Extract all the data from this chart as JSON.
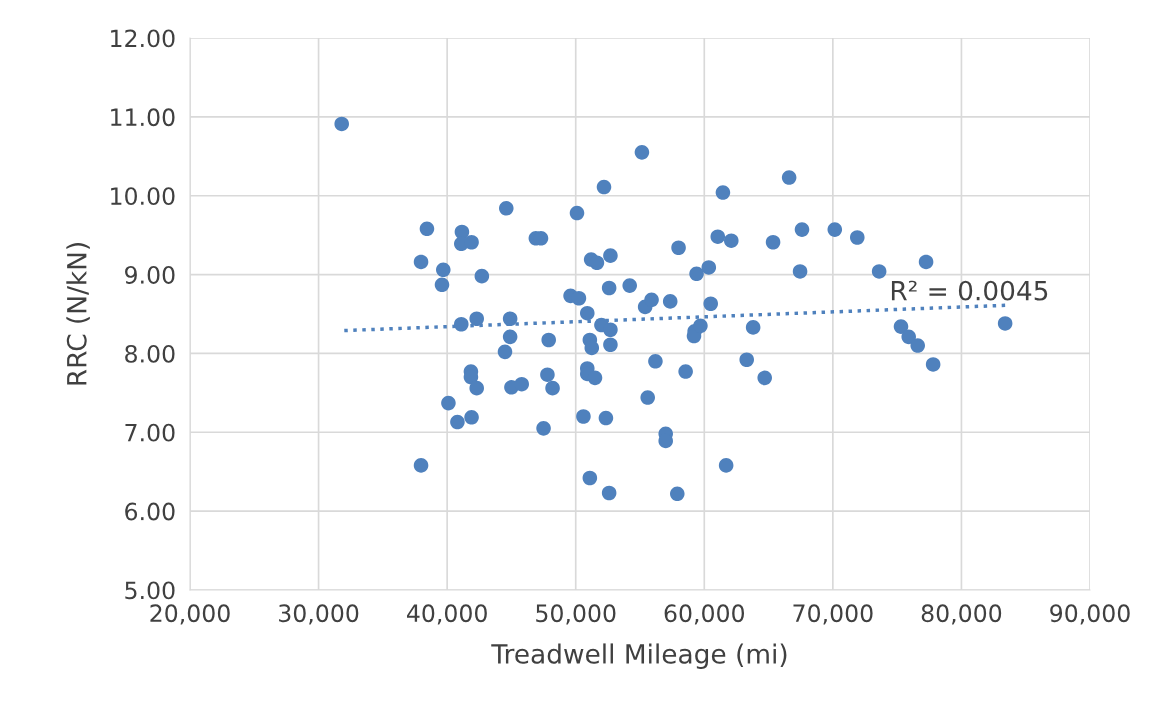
{
  "chart_data": {
    "type": "scatter",
    "xlabel": "Treadwell Mileage (mi)",
    "ylabel": "RRC (N/kN)",
    "series": [
      {
        "color": "#4f81bd",
        "marker": "circle",
        "x": [
          31800,
          37970,
          38430,
          37970,
          39700,
          39600,
          40100,
          40800,
          41150,
          41100,
          41100,
          41900,
          41850,
          41850,
          41900,
          42300,
          42300,
          42700,
          44600,
          44500,
          44900,
          44900,
          45000,
          45800,
          46900,
          47300,
          47500,
          47800,
          47900,
          48200,
          49600,
          50100,
          50250,
          50600,
          50900,
          50900,
          50900,
          51100,
          51200,
          51100,
          51250,
          51500,
          51650,
          52000,
          52200,
          52350,
          52700,
          52600,
          52700,
          52700,
          52600,
          54200,
          55150,
          55400,
          55600,
          55900,
          56200,
          57000,
          57000,
          57350,
          57900,
          58000,
          58550,
          59250,
          59200,
          59400,
          59700,
          60350,
          60500,
          61050,
          61450,
          61700,
          62100,
          63300,
          63800,
          64700,
          65350,
          66600,
          67450,
          67600,
          70150,
          71900,
          73600,
          75300,
          75900,
          76600,
          77250,
          77800,
          83400
        ],
        "values": [
          10.91,
          9.16,
          9.58,
          6.58,
          9.06,
          8.87,
          7.37,
          7.13,
          9.54,
          9.39,
          8.37,
          9.41,
          7.77,
          7.7,
          7.19,
          7.56,
          8.44,
          8.98,
          9.84,
          8.02,
          8.44,
          8.21,
          7.57,
          7.61,
          9.46,
          9.46,
          7.05,
          7.73,
          8.17,
          7.56,
          8.73,
          9.78,
          8.7,
          7.2,
          8.51,
          7.81,
          7.74,
          6.42,
          9.19,
          8.17,
          8.07,
          7.69,
          9.15,
          8.36,
          10.11,
          7.18,
          9.24,
          8.83,
          8.3,
          8.11,
          6.23,
          8.86,
          10.55,
          8.59,
          7.44,
          8.68,
          7.9,
          6.98,
          6.89,
          8.66,
          6.22,
          9.34,
          7.77,
          8.28,
          8.22,
          9.01,
          8.35,
          9.09,
          8.63,
          9.48,
          10.04,
          6.58,
          9.43,
          7.92,
          8.33,
          7.69,
          9.41,
          10.23,
          9.04,
          9.57,
          9.57,
          9.47,
          9.04,
          8.34,
          8.21,
          8.1,
          9.16,
          7.86,
          8.38
        ]
      },
      {
        "type": "line",
        "color": "#4f81bd",
        "line_style": "dotted",
        "marker": "none",
        "x": [
          32000,
          83400
        ],
        "values": [
          8.29,
          8.61
        ]
      }
    ],
    "annotations": [
      "R² = 0.0045"
    ],
    "xlim": [
      20000,
      90000
    ],
    "ylim": [
      5,
      12
    ],
    "xticks": [
      {
        "value": 20000,
        "label": "20,000"
      },
      {
        "value": 30000,
        "label": "30,000"
      },
      {
        "value": 40000,
        "label": "40,000"
      },
      {
        "value": 50000,
        "label": "50,000"
      },
      {
        "value": 60000,
        "label": "60,000"
      },
      {
        "value": 70000,
        "label": "70,000"
      },
      {
        "value": 80000,
        "label": "80,000"
      },
      {
        "value": 90000,
        "label": "90,000"
      }
    ],
    "yticks": [
      {
        "value": 5,
        "label": "5.00"
      },
      {
        "value": 6,
        "label": "6.00"
      },
      {
        "value": 7,
        "label": "7.00"
      },
      {
        "value": 8,
        "label": "8.00"
      },
      {
        "value": 9,
        "label": "9.00"
      },
      {
        "value": 10,
        "label": "10.00"
      },
      {
        "value": 11,
        "label": "11.00"
      },
      {
        "value": 12,
        "label": "12.00"
      }
    ],
    "grid": true,
    "legend": false
  }
}
